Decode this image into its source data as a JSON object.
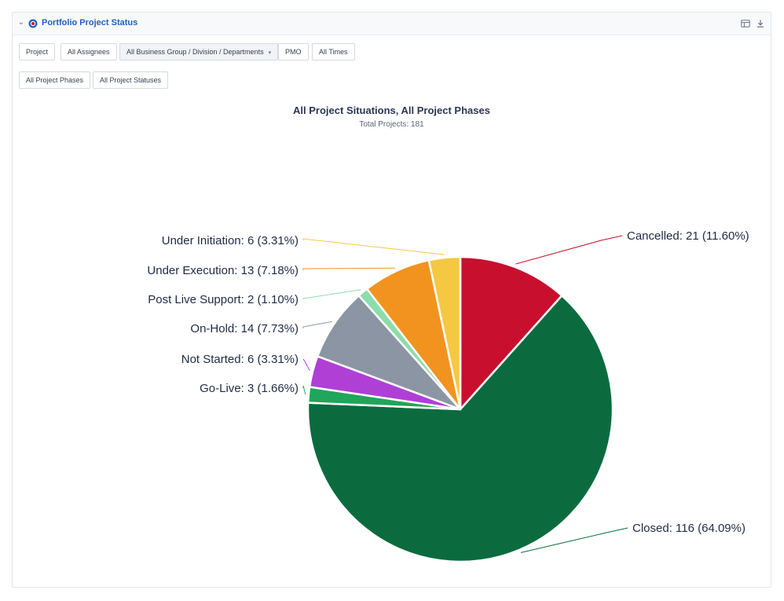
{
  "panel": {
    "title": "Portfolio Project Status",
    "icons": [
      "chevron-down-icon",
      "brand-icon",
      "table-view-icon",
      "download-icon"
    ]
  },
  "filters": {
    "row1": [
      {
        "label": "Project"
      },
      {
        "label": "All Assignees"
      },
      {
        "label": "All Business Group / Division / Departments",
        "dropdown": true
      },
      {
        "label": "PMO"
      },
      {
        "label": "All Times"
      }
    ],
    "row2": [
      {
        "label": "All Project Phases"
      },
      {
        "label": "All Project Statuses"
      }
    ]
  },
  "chart_data": {
    "type": "pie",
    "title": "All Project Situations, All Project Phases",
    "subtitle": "Total Projects: 181",
    "slices": [
      {
        "name": "Cancelled",
        "value": 21,
        "percent": 11.6,
        "label": "Cancelled: 21 (11.60%)",
        "color": "#c8102e"
      },
      {
        "name": "Closed",
        "value": 116,
        "percent": 64.09,
        "label": "Closed: 116 (64.09%)",
        "color": "#0b6b3f"
      },
      {
        "name": "Go-Live",
        "value": 3,
        "percent": 1.66,
        "label": "Go-Live: 3 (1.66%)",
        "color": "#1fa65a"
      },
      {
        "name": "Not Started",
        "value": 6,
        "percent": 3.31,
        "label": "Not Started: 6 (3.31%)",
        "color": "#b03fd6"
      },
      {
        "name": "On-Hold",
        "value": 14,
        "percent": 7.73,
        "label": "On-Hold: 14 (7.73%)",
        "color": "#8c95a3"
      },
      {
        "name": "Post Live Support",
        "value": 2,
        "percent": 1.1,
        "label": "Post Live Support: 2 (1.10%)",
        "color": "#8ddcab"
      },
      {
        "name": "Under Execution",
        "value": 13,
        "percent": 7.18,
        "label": "Under Execution: 13 (7.18%)",
        "color": "#f2931f"
      },
      {
        "name": "Under Initiation",
        "value": 6,
        "percent": 3.31,
        "label": "Under Initiation: 6 (3.31%)",
        "color": "#f5c842"
      }
    ]
  }
}
